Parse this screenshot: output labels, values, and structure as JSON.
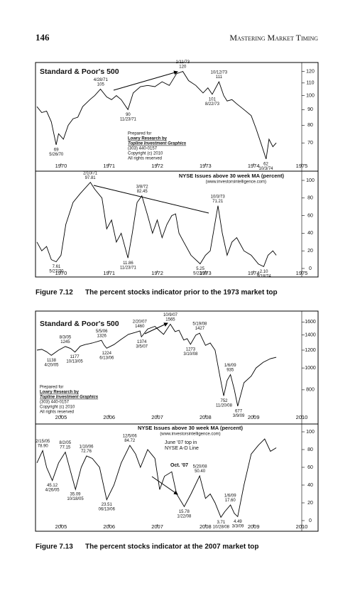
{
  "header": {
    "page_number": "146",
    "running_title": "Mastering Market Timing"
  },
  "figures": [
    {
      "label": "Figure 7.12",
      "caption": "The percent stocks indicator prior to the 1973 market top"
    },
    {
      "label": "Figure 7.13",
      "caption": "The percent stocks indicator at the 2007 market top"
    }
  ],
  "chart_data": [
    {
      "type": "line",
      "title": "Standard & Poor's 500",
      "log_scale": true,
      "color": "#000000",
      "xlim": [
        1970,
        1975.5
      ],
      "xticks": [
        {
          "value": 1970.5,
          "label": "1970"
        },
        {
          "value": 1971.5,
          "label": "1971"
        },
        {
          "value": 1972.5,
          "label": "1972"
        },
        {
          "value": 1973.5,
          "label": "1973"
        },
        {
          "value": 1974.5,
          "label": "1974"
        },
        {
          "value": 1975.5,
          "label": "1975"
        }
      ],
      "ylim": [
        60,
        127
      ],
      "yticks": [
        120,
        110,
        100,
        90,
        80,
        70
      ],
      "x": [
        1970.0,
        1970.1,
        1970.2,
        1970.3,
        1970.4,
        1970.45,
        1970.55,
        1970.65,
        1970.75,
        1970.85,
        1970.95,
        1971.1,
        1971.2,
        1971.32,
        1971.45,
        1971.55,
        1971.65,
        1971.75,
        1971.89,
        1972.0,
        1972.15,
        1972.3,
        1972.45,
        1972.6,
        1972.75,
        1972.9,
        1973.03,
        1973.15,
        1973.3,
        1973.45,
        1973.55,
        1973.64,
        1973.78,
        1973.88,
        1973.95,
        1974.05,
        1974.15,
        1974.3,
        1974.45,
        1974.55,
        1974.65,
        1974.76,
        1974.82,
        1974.9,
        1974.97
      ],
      "values": [
        92,
        88,
        89,
        82,
        69,
        75,
        72,
        80,
        84,
        85,
        92,
        97,
        100,
        105,
        99,
        97,
        100,
        97,
        90,
        102,
        107,
        108,
        107,
        111,
        108,
        118,
        120,
        112,
        108,
        102,
        106,
        101,
        111,
        100,
        96,
        97,
        94,
        90,
        86,
        78,
        70,
        62,
        72,
        68,
        70
      ],
      "annotations": [
        {
          "date": "1/11/73",
          "value": 120
        },
        {
          "date": "4/28/71",
          "value": 105
        },
        {
          "date": "10/12/73",
          "value": 111
        },
        {
          "date": "8/22/73",
          "value": 101
        },
        {
          "date": "11/23/71",
          "value": 90
        },
        {
          "date": "5/26/70",
          "value": 69
        },
        {
          "date": "10/3/74",
          "value": 62
        }
      ],
      "credit": [
        "Prepared for",
        "Lowry Research by",
        "Topline Investment Graphics",
        "(303) 440-0157",
        "Copyright (c) 2010",
        "All rights reserved"
      ]
    },
    {
      "type": "line",
      "title": "NYSE Issues above 30 week MA (percent)",
      "subtitle": "(www.investorsintelligence.com)",
      "log_scale": false,
      "color": "#000000",
      "xlim": [
        1970,
        1975.5
      ],
      "xticks": [
        {
          "value": 1970.5,
          "label": "1970"
        },
        {
          "value": 1971.5,
          "label": "1971"
        },
        {
          "value": 1972.5,
          "label": "1972"
        },
        {
          "value": 1973.5,
          "label": "1973"
        },
        {
          "value": 1974.5,
          "label": "1974"
        },
        {
          "value": 1975.5,
          "label": "1975"
        }
      ],
      "ylim": [
        0,
        100
      ],
      "yticks": [
        100,
        80,
        60,
        40,
        20,
        0
      ],
      "x": [
        1970.0,
        1970.1,
        1970.2,
        1970.3,
        1970.4,
        1970.5,
        1970.6,
        1970.75,
        1970.9,
        1971.11,
        1971.2,
        1971.35,
        1971.45,
        1971.55,
        1971.65,
        1971.75,
        1971.89,
        1971.98,
        1972.08,
        1972.18,
        1972.3,
        1972.4,
        1972.5,
        1972.6,
        1972.7,
        1972.8,
        1972.88,
        1972.95,
        1973.05,
        1973.2,
        1973.39,
        1973.5,
        1973.6,
        1973.76,
        1973.85,
        1973.95,
        1974.05,
        1974.15,
        1974.3,
        1974.45,
        1974.6,
        1974.71,
        1974.8,
        1974.9,
        1974.97
      ],
      "values": [
        30,
        20,
        25,
        10,
        7.61,
        15,
        50,
        75,
        85,
        97.81,
        90,
        80,
        45,
        55,
        30,
        40,
        11.86,
        40,
        75,
        82.45,
        60,
        40,
        55,
        35,
        50,
        60,
        62,
        40,
        30,
        15,
        5.25,
        15,
        20,
        71.21,
        40,
        15,
        30,
        35,
        20,
        15,
        5,
        2.1,
        15,
        20,
        15
      ],
      "annotations": [
        {
          "date": "2/10/71",
          "value": 97.81
        },
        {
          "date": "3/8/72",
          "value": 82.45
        },
        {
          "date": "10/3/73",
          "value": 71.21
        },
        {
          "date": "11/23/71",
          "value": 11.86
        },
        {
          "date": "5/23/73",
          "value": 5.25
        },
        {
          "date": "5/27/70",
          "value": 7.61
        },
        {
          "date": "9/18/74",
          "value": 2.1,
          "value_label": "2.10"
        }
      ]
    },
    {
      "type": "line",
      "title": "Standard & Poor's 500",
      "log_scale": true,
      "color": "#000000",
      "xlim": [
        2005,
        2010.5
      ],
      "xticks": [
        {
          "value": 2005.5,
          "label": "2005"
        },
        {
          "value": 2006.5,
          "label": "2006"
        },
        {
          "value": 2007.5,
          "label": "2007"
        },
        {
          "value": 2008.5,
          "label": "2008"
        },
        {
          "value": 2009.5,
          "label": "2009"
        },
        {
          "value": 2010.5,
          "label": "2010"
        }
      ],
      "ylim": [
        620,
        1750
      ],
      "yticks": [
        1600,
        1400,
        1200,
        1000,
        800
      ],
      "x": [
        2005.0,
        2005.1,
        2005.2,
        2005.3,
        2005.45,
        2005.59,
        2005.7,
        2005.79,
        2005.9,
        2006.0,
        2006.15,
        2006.34,
        2006.4,
        2006.45,
        2006.6,
        2006.75,
        2006.9,
        2007.05,
        2007.14,
        2007.17,
        2007.3,
        2007.45,
        2007.55,
        2007.63,
        2007.77,
        2007.87,
        2007.95,
        2008.05,
        2008.12,
        2008.19,
        2008.3,
        2008.38,
        2008.5,
        2008.6,
        2008.7,
        2008.8,
        2008.88,
        2008.95,
        2009.02,
        2009.1,
        2009.17,
        2009.3,
        2009.45,
        2009.55,
        2009.7,
        2009.85,
        2009.97
      ],
      "values": [
        1200,
        1210,
        1180,
        1138,
        1200,
        1245,
        1220,
        1177,
        1250,
        1270,
        1290,
        1326,
        1260,
        1224,
        1270,
        1340,
        1410,
        1440,
        1460,
        1374,
        1490,
        1530,
        1460,
        1410,
        1565,
        1450,
        1470,
        1330,
        1350,
        1273,
        1400,
        1427,
        1260,
        1290,
        1200,
        920,
        752,
        880,
        935,
        800,
        677,
        860,
        920,
        1000,
        1060,
        1100,
        1115
      ],
      "annotations": [
        {
          "date": "10/9/07",
          "value": 1565
        },
        {
          "date": "2/20/07",
          "value": 1460
        },
        {
          "date": "5/19/08",
          "value": 1427
        },
        {
          "date": "5/5/06",
          "value": 1326
        },
        {
          "date": "8/3/05",
          "value": 1245
        },
        {
          "date": "3/5/07",
          "value": 1374
        },
        {
          "date": "6/13/06",
          "value": 1224
        },
        {
          "date": "3/10/08",
          "value": 1273
        },
        {
          "date": "10/13/05",
          "value": 1177
        },
        {
          "date": "4/20/05",
          "value": 1138
        },
        {
          "date": "1/6/09",
          "value": 935
        },
        {
          "date": "11/20/08",
          "value": 752
        },
        {
          "date": "3/9/09",
          "value": 677
        }
      ],
      "credit": [
        "Prepared for",
        "Lowry Research by",
        "Topline Investment Graphics",
        "(303) 440-0157",
        "Copyright (c) 2010",
        "All rights reserved"
      ]
    },
    {
      "type": "line",
      "title": "NYSE Issues above 30 week MA (percent)",
      "subtitle": "(www.investorsintelligence.com)",
      "log_scale": false,
      "color": "#000000",
      "xlim": [
        2005,
        2010.5
      ],
      "xticks": [
        {
          "value": 2005.5,
          "label": "2005"
        },
        {
          "value": 2006.5,
          "label": "2006"
        },
        {
          "value": 2007.5,
          "label": "2007"
        },
        {
          "value": 2008.5,
          "label": "2008"
        },
        {
          "value": 2009.5,
          "label": "2009"
        },
        {
          "value": 2010.5,
          "label": "2010"
        }
      ],
      "ylim": [
        0,
        100
      ],
      "yticks": [
        100,
        80,
        60,
        40,
        20,
        0
      ],
      "x": [
        2005.0,
        2005.12,
        2005.2,
        2005.32,
        2005.45,
        2005.59,
        2005.7,
        2005.8,
        2005.92,
        2006.03,
        2006.15,
        2006.3,
        2006.45,
        2006.6,
        2006.75,
        2006.93,
        2007.05,
        2007.15,
        2007.3,
        2007.45,
        2007.55,
        2007.65,
        2007.8,
        2007.9,
        2008.06,
        2008.2,
        2008.38,
        2008.5,
        2008.6,
        2008.7,
        2008.82,
        2008.9,
        2009.02,
        2009.1,
        2009.17,
        2009.3,
        2009.45,
        2009.6,
        2009.73,
        2009.85,
        2009.97
      ],
      "values": [
        65,
        78.9,
        60,
        45.12,
        65,
        77.15,
        55,
        35.09,
        60,
        72.76,
        70,
        60,
        23.51,
        40,
        65,
        84.72,
        75,
        60,
        80,
        70,
        35,
        50,
        55,
        30,
        15.78,
        30,
        50.4,
        25,
        30,
        20,
        3.71,
        10,
        17.6,
        8,
        4.49,
        40,
        75,
        85,
        92,
        78,
        82
      ],
      "annotations": [
        {
          "date": "2/15/05",
          "value": 78.9,
          "value_label": "78.90"
        },
        {
          "date": "8/2/05",
          "value": 77.15
        },
        {
          "date": "1/10/06",
          "value": 72.76
        },
        {
          "date": "12/5/06",
          "value": 84.72
        },
        {
          "date": "4/26/05",
          "value": 45.12
        },
        {
          "date": "10/18/05",
          "value": 35.09
        },
        {
          "date": "06/13/06",
          "value": 23.51
        },
        {
          "date": "5/20/08",
          "value": 50.4,
          "value_label": "50.40"
        },
        {
          "date": "1/22/08",
          "value": 15.78
        },
        {
          "date": "1/6/09",
          "value": 17.6,
          "value_label": "17.60"
        },
        {
          "date": "10/28/08",
          "value": 3.71
        },
        {
          "date": "3/3/09",
          "value": 4.49
        }
      ],
      "notes": [
        "June '07 top in",
        "NYSE A-D Line",
        "Oct. '07"
      ]
    }
  ]
}
